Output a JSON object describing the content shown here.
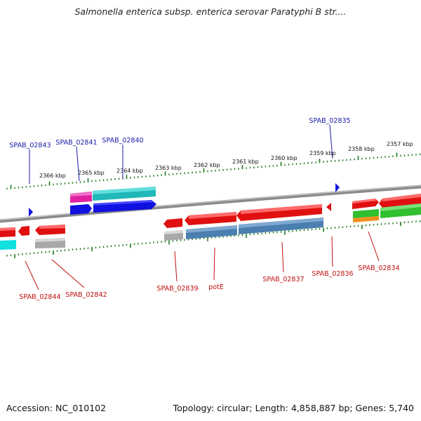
{
  "title": "Salmonella enterica subsp. enterica serovar Paratyphi B str....",
  "footer": {
    "accession": "Accession: NC_010102",
    "info": "Topology: circular; Length: 4,858,887 bp; Genes: 5,740"
  },
  "ticks": [
    "2366 kbp",
    "2365 kbp",
    "2364 kbp",
    "2363 kbp",
    "2362 kbp",
    "2361 kbp",
    "2360 kbp",
    "2359 kbp",
    "2358 kbp",
    "2357 kbp"
  ],
  "top_genes": [
    "SPAB_02843",
    "SPAB_02841",
    "SPAB_02840",
    "SPAB_02835"
  ],
  "bottom_genes": [
    "SPAB_02844",
    "SPAB_02842",
    "SPAB_02839",
    "potE",
    "SPAB_02837",
    "SPAB_02836",
    "SPAB_02834"
  ],
  "colors": {
    "top_label": "#1a1aa8",
    "bottom_label": "#c01010",
    "tick": "#1e7a1e",
    "backbone": "#808080",
    "gene_red": "#e01010",
    "gene_blue": "#1010e0",
    "gene_cyan": "#20c0c0",
    "gene_magenta": "#e020a0",
    "gene_steel": "#4a7fb0",
    "gene_gray": "#a8a8a8",
    "gene_green": "#30c030",
    "gene_orange": "#f09020"
  }
}
